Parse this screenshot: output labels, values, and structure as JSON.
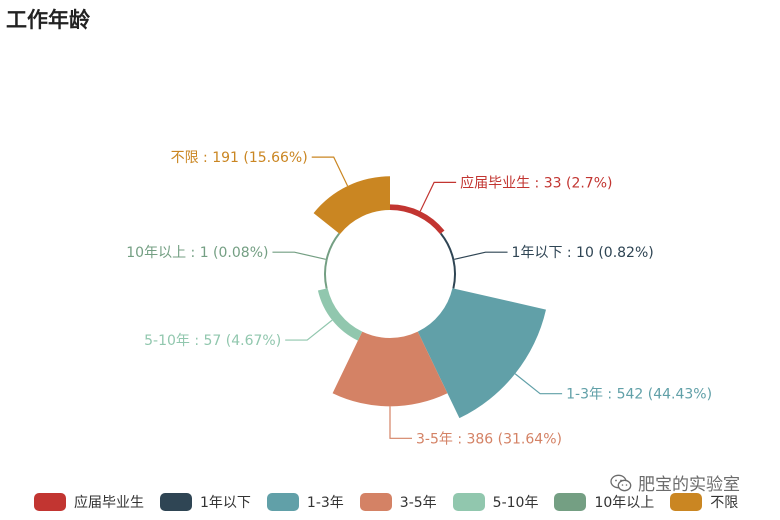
{
  "title": "工作年龄",
  "watermark": {
    "text": "肥宝的实验室",
    "icon": "wechat-icon"
  },
  "chart_data": {
    "type": "pie",
    "subtype": "rose",
    "title": "工作年龄",
    "categories": [
      "应届毕业生",
      "1年以下",
      "1-3年",
      "3-5年",
      "5-10年",
      "10年以上",
      "不限"
    ],
    "values": [
      33,
      10,
      542,
      386,
      57,
      1,
      191
    ],
    "percents": [
      "2.7%",
      "0.82%",
      "44.43%",
      "31.64%",
      "4.67%",
      "0.08%",
      "15.66%"
    ],
    "labels": [
      "应届毕业生 : 33 (2.7%)",
      "1年以下 : 10 (0.82%)",
      "1-3年 : 542 (44.43%)",
      "3-5年 : 386 (31.64%)",
      "5-10年 : 57 (4.67%)",
      "10年以上 : 1 (0.08%)",
      "不限 : 191 (15.66%)"
    ],
    "colors": [
      "#c23531",
      "#2f4554",
      "#61a0a8",
      "#d48265",
      "#91c7ae",
      "#749f83",
      "#ca8622"
    ],
    "legend_position": "bottom"
  }
}
